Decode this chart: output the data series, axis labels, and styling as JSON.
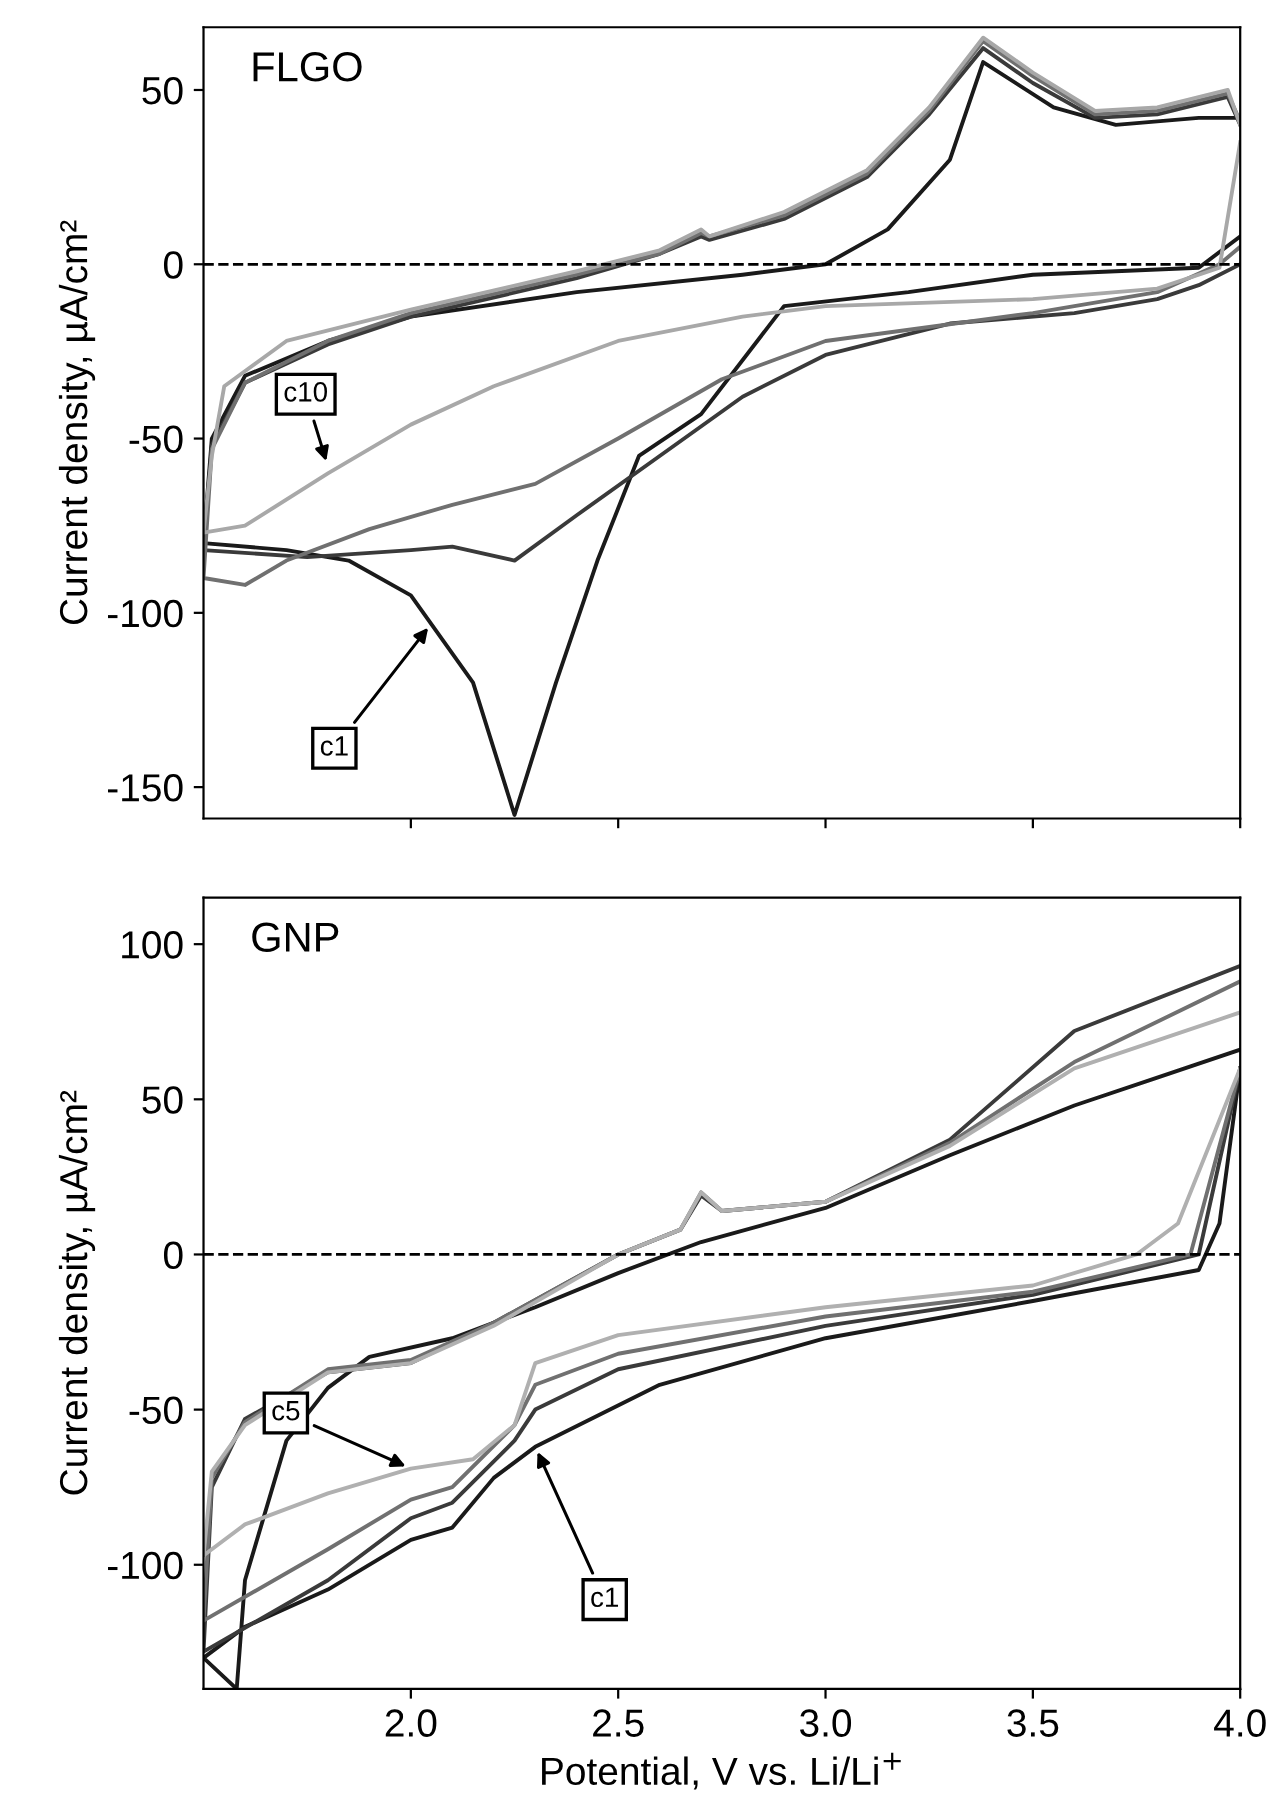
{
  "chart_data": [
    {
      "type": "line",
      "title": "FLGO",
      "ylabel": "Current density, µA/cm²",
      "xlim": [
        1.5,
        4.0
      ],
      "ylim": [
        -159,
        68
      ],
      "xticks": [
        {
          "value": 2.0,
          "label": null
        },
        {
          "value": 2.5,
          "label": null
        },
        {
          "value": 3.0,
          "label": null
        },
        {
          "value": 3.5,
          "label": null
        },
        {
          "value": 4.0,
          "label": null
        }
      ],
      "yticks": [
        -150,
        -100,
        -50,
        0,
        50
      ],
      "tick_labels": "y",
      "grid": false,
      "legend": false,
      "line_style": "solid",
      "marker": "none",
      "ref_lines": [
        {
          "axis": "y",
          "value": 0,
          "line_style": "dashed",
          "color": "#000000"
        }
      ],
      "annotations": [
        {
          "text": "c10",
          "x": 1.8,
          "y": -58
        },
        {
          "text": "c1",
          "x": 2.05,
          "y": -103
        }
      ],
      "series": [
        {
          "color": "#1a1a1a",
          "x": [
            4.0,
            3.9,
            3.5,
            3.2,
            2.9,
            2.7,
            2.55,
            2.45,
            2.35,
            2.25,
            2.15,
            2.0,
            1.85,
            1.7,
            1.5,
            1.52,
            1.6,
            1.8,
            2.0,
            2.4,
            2.8,
            3.0,
            3.15,
            3.3,
            3.38,
            3.55,
            3.7,
            3.9,
            4.0
          ],
          "values": [
            8,
            -1,
            -3,
            -8,
            -12,
            -43,
            -55,
            -85,
            -120,
            -158,
            -120,
            -95,
            -85,
            -82,
            -80,
            -50,
            -32,
            -22,
            -15,
            -8,
            -3,
            0,
            10,
            30,
            58,
            45,
            40,
            42,
            42
          ]
        },
        {
          "color": "#3a3a3a",
          "x": [
            4.0,
            3.9,
            3.8,
            3.6,
            3.3,
            3.0,
            2.8,
            2.6,
            2.4,
            2.25,
            2.1,
            2.0,
            1.75,
            1.5,
            1.52,
            1.6,
            1.8,
            2.0,
            2.4,
            2.6,
            2.7,
            2.72,
            2.9,
            3.1,
            3.25,
            3.38,
            3.5,
            3.65,
            3.8,
            3.97,
            4.0
          ],
          "values": [
            0,
            -6,
            -10,
            -14,
            -17,
            -26,
            -38,
            -55,
            -72,
            -85,
            -81,
            -82,
            -84,
            -82,
            -52,
            -34,
            -23,
            -15,
            -4,
            3,
            8,
            7,
            13,
            25,
            43,
            62,
            52,
            42,
            43,
            48,
            40
          ]
        },
        {
          "color": "#707070",
          "x": [
            4.0,
            3.95,
            3.8,
            3.5,
            3.0,
            2.75,
            2.5,
            2.3,
            2.1,
            1.9,
            1.7,
            1.6,
            1.5,
            1.52,
            1.6,
            1.8,
            2.0,
            2.4,
            2.6,
            2.7,
            2.72,
            2.9,
            3.1,
            3.25,
            3.38,
            3.5,
            3.65,
            3.8,
            3.97,
            4.0
          ],
          "values": [
            5,
            0,
            -8,
            -14,
            -22,
            -33,
            -50,
            -63,
            -69,
            -76,
            -85,
            -92,
            -90,
            -53,
            -34,
            -22,
            -14,
            -3,
            3,
            9,
            8,
            14,
            26,
            44,
            64,
            54,
            43,
            44,
            49,
            41
          ]
        },
        {
          "color": "#a8a8a8",
          "x": [
            4.0,
            3.95,
            3.8,
            3.5,
            3.0,
            2.8,
            2.5,
            2.2,
            2.0,
            1.8,
            1.6,
            1.5,
            1.52,
            1.55,
            1.7,
            2.0,
            2.4,
            2.6,
            2.7,
            2.72,
            2.9,
            3.1,
            3.25,
            3.38,
            3.5,
            3.65,
            3.8,
            3.97,
            4.0
          ],
          "values": [
            35,
            -1,
            -7,
            -10,
            -12,
            -15,
            -22,
            -35,
            -46,
            -60,
            -75,
            -77,
            -55,
            -35,
            -22,
            -13,
            -2,
            4,
            10,
            8,
            15,
            27,
            45,
            65,
            55,
            44,
            45,
            50,
            40
          ]
        }
      ]
    },
    {
      "type": "line",
      "title": "GNP",
      "ylabel": "Current density, µA/cm²",
      "xlabel": "Potential, V vs. Li/Li$^{+}$",
      "xlim": [
        1.5,
        4.0
      ],
      "ylim": [
        -140,
        115
      ],
      "xticks": [
        {
          "value": 2.0,
          "label": "2.0"
        },
        {
          "value": 2.5,
          "label": "2.5"
        },
        {
          "value": 3.0,
          "label": "3.0"
        },
        {
          "value": 3.5,
          "label": "3.5"
        },
        {
          "value": 4.0,
          "label": "4.0"
        }
      ],
      "yticks": [
        -100,
        -50,
        0,
        50,
        100
      ],
      "grid": false,
      "legend": false,
      "line_style": "solid",
      "marker": "none",
      "ref_lines": [
        {
          "axis": "y",
          "value": 0,
          "line_style": "dashed",
          "color": "#000000"
        }
      ],
      "annotations": [
        {
          "text": "c5",
          "x": 2.0,
          "y": -69
        },
        {
          "text": "c1",
          "x": 2.3,
          "y": -62
        }
      ],
      "series": [
        {
          "color": "#1a1a1a",
          "x": [
            4.0,
            3.95,
            3.9,
            3.5,
            3.0,
            2.6,
            2.3,
            2.2,
            2.1,
            2.0,
            1.8,
            1.6,
            1.5,
            1.58,
            1.6,
            1.7,
            1.8,
            1.9,
            2.1,
            2.3,
            2.5,
            2.7,
            3.0,
            3.3,
            3.6,
            3.8,
            4.0
          ],
          "values": [
            60,
            10,
            -5,
            -15,
            -27,
            -42,
            -62,
            -72,
            -88,
            -92,
            -108,
            -120,
            -130,
            -140,
            -105,
            -60,
            -43,
            -33,
            -27,
            -17,
            -6,
            4,
            15,
            32,
            48,
            57,
            66
          ]
        },
        {
          "color": "#3a3a3a",
          "x": [
            4.0,
            3.9,
            3.5,
            3.0,
            2.5,
            2.3,
            2.25,
            2.1,
            2.0,
            1.8,
            1.5,
            1.52,
            1.6,
            1.8,
            2.0,
            2.2,
            2.5,
            2.65,
            2.7,
            2.75,
            3.0,
            3.3,
            3.6,
            4.0
          ],
          "values": [
            60,
            0,
            -13,
            -23,
            -37,
            -50,
            -60,
            -80,
            -85,
            -105,
            -128,
            -75,
            -53,
            -38,
            -35,
            -22,
            0,
            8,
            19,
            14,
            17,
            37,
            72,
            93
          ]
        },
        {
          "color": "#707070",
          "x": [
            4.0,
            3.88,
            3.5,
            3.0,
            2.5,
            2.3,
            2.25,
            2.1,
            2.0,
            1.8,
            1.5,
            1.52,
            1.6,
            1.8,
            2.0,
            2.2,
            2.5,
            2.65,
            2.7,
            2.75,
            3.0,
            3.3,
            3.6,
            4.0
          ],
          "values": [
            60,
            0,
            -12,
            -20,
            -32,
            -42,
            -55,
            -75,
            -79,
            -95,
            -118,
            -72,
            -54,
            -37,
            -34,
            -22,
            0,
            8,
            20,
            14,
            17,
            36,
            62,
            88
          ]
        },
        {
          "color": "#b0b0b0",
          "x": [
            4.0,
            3.85,
            3.75,
            3.5,
            3.0,
            2.5,
            2.3,
            2.25,
            2.15,
            2.0,
            1.8,
            1.6,
            1.5,
            1.52,
            1.6,
            1.8,
            2.0,
            2.2,
            2.5,
            2.65,
            2.7,
            2.75,
            3.0,
            3.3,
            3.6,
            4.0
          ],
          "values": [
            60,
            10,
            0,
            -10,
            -17,
            -26,
            -35,
            -55,
            -66,
            -69,
            -77,
            -87,
            -97,
            -70,
            -55,
            -38,
            -35,
            -23,
            0,
            8,
            20,
            14,
            17,
            35,
            60,
            78
          ]
        }
      ]
    }
  ]
}
